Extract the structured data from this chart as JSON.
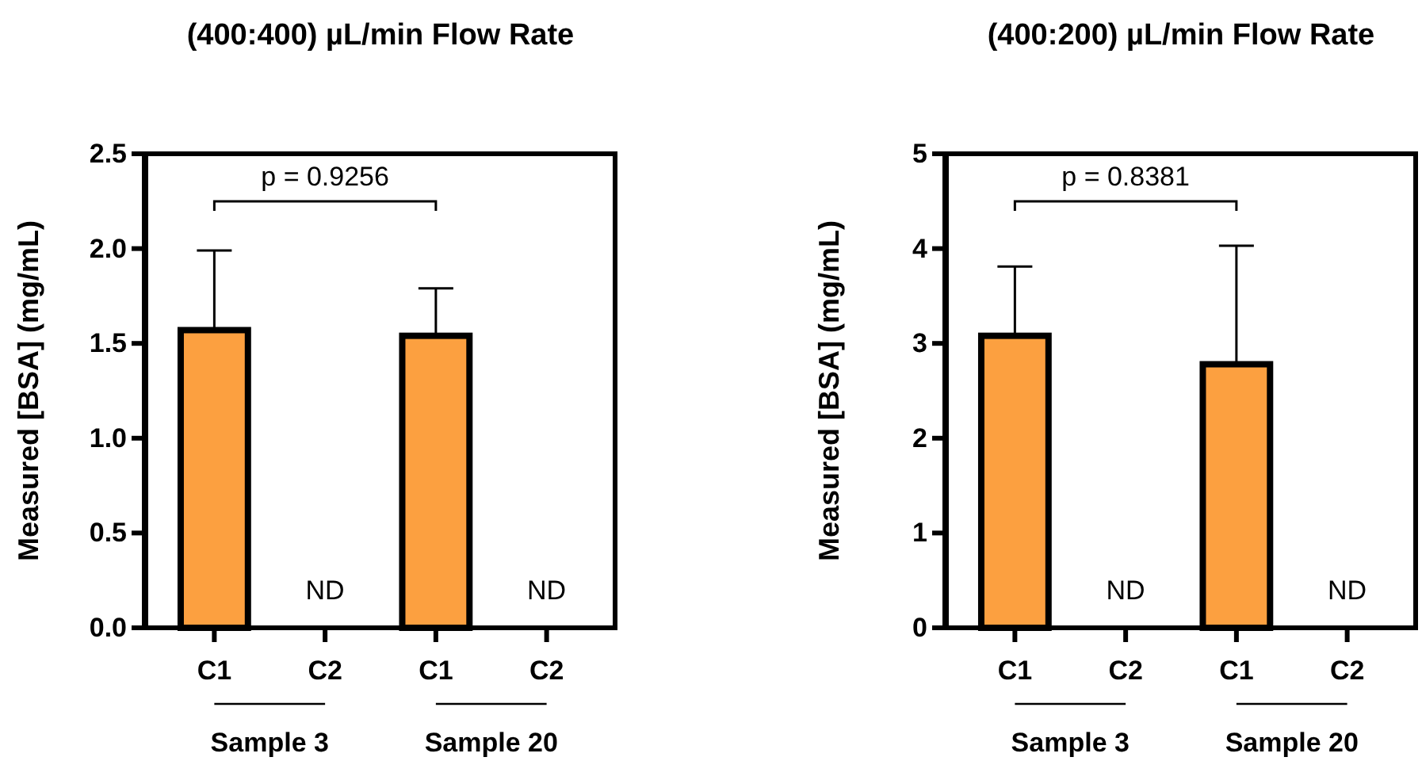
{
  "chart_data": [
    {
      "type": "bar",
      "title": "(400:400) µL/min Flow Rate",
      "ylabel": "Measured [BSA] (mg/mL)",
      "categories": [
        "C1",
        "C2",
        "C1",
        "C2"
      ],
      "values": [
        1.57,
        null,
        1.54,
        null
      ],
      "errors": [
        [
          1.57,
          1.99
        ],
        null,
        [
          1.54,
          1.79
        ],
        null
      ],
      "color": "#fca040",
      "ylim": [
        0,
        2.5
      ],
      "yticks": [
        {
          "value": 0,
          "label": "0.0"
        },
        {
          "value": 0.5,
          "label": "0.5"
        },
        {
          "value": 1,
          "label": "1.0"
        },
        {
          "value": 1.5,
          "label": "1.5"
        },
        {
          "value": 2,
          "label": "2.0"
        },
        {
          "value": 2.5,
          "label": "2.5"
        }
      ],
      "grid": false,
      "annotations": [
        "p  = 0.9256",
        "ND",
        "ND",
        "Sample 3",
        "Sample 20"
      ]
    },
    {
      "type": "bar",
      "title": "(400:200) µL/min Flow Rate",
      "ylabel": "Measured [BSA] (mg/mL)",
      "categories": [
        "C1",
        "C2",
        "C1",
        "C2"
      ],
      "values": [
        3.08,
        null,
        2.78,
        null
      ],
      "errors": [
        [
          3.08,
          3.81
        ],
        null,
        [
          2.78,
          4.03
        ],
        null
      ],
      "color": "#fca040",
      "ylim": [
        0,
        5
      ],
      "yticks": [
        0,
        1,
        2,
        3,
        4,
        5
      ],
      "grid": false,
      "annotations": [
        "p = 0.8381",
        "ND",
        "ND",
        "Sample 3",
        "Sample 20"
      ]
    }
  ]
}
